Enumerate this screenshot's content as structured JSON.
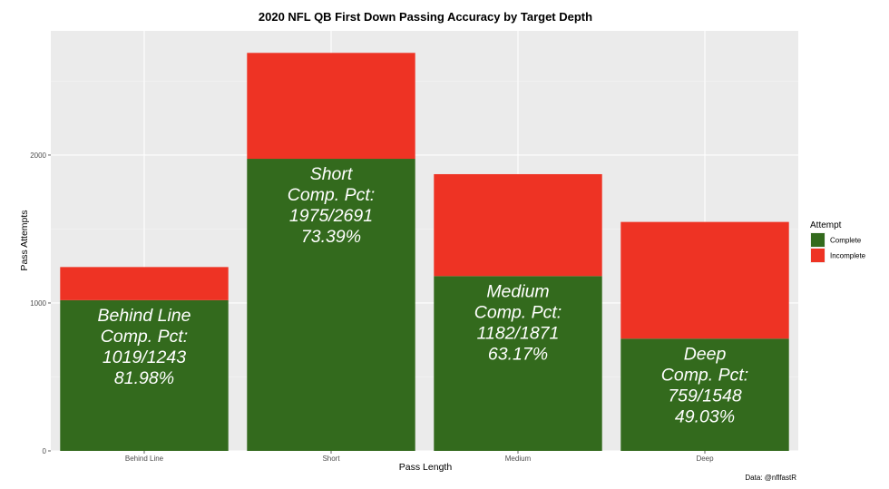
{
  "chart_data": {
    "type": "bar",
    "stacked": true,
    "title": "2020 NFL QB First Down Passing Accuracy by Target Depth",
    "xlabel": "Pass Length",
    "ylabel": "Pass Attempts",
    "ylim": [
      0,
      2840
    ],
    "yticks": [
      0,
      1000,
      2000
    ],
    "grid": true,
    "categories": [
      "Behind Line",
      "Short",
      "Medium",
      "Deep"
    ],
    "series": [
      {
        "name": "Complete",
        "color": "#336a1d",
        "values": [
          1019,
          1975,
          1182,
          759
        ]
      },
      {
        "name": "Incomplete",
        "color": "#ee3324",
        "values": [
          224,
          716,
          689,
          789
        ]
      }
    ],
    "bar_labels": [
      {
        "category": "Behind Line",
        "lines": [
          "Behind Line",
          "Comp. Pct:",
          "1019/1243",
          "81.98%"
        ]
      },
      {
        "category": "Short",
        "lines": [
          "Short",
          "Comp. Pct:",
          "1975/2691",
          "73.39%"
        ]
      },
      {
        "category": "Medium",
        "lines": [
          "Medium",
          "Comp. Pct:",
          "1182/1871",
          "63.17%"
        ]
      },
      {
        "category": "Deep",
        "lines": [
          "Deep",
          "Comp. Pct:",
          "759/1548",
          "49.03%"
        ]
      }
    ],
    "legend": {
      "title": "Attempt",
      "position": "right"
    },
    "caption": "Data: @nflfastR"
  }
}
